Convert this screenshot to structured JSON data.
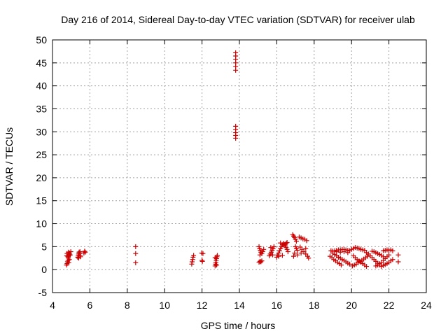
{
  "chart_data": {
    "type": "scatter",
    "title": "Day 216 of 2014, Sidereal Day-to-day VTEC variation (SDTVAR) for receiver ulab",
    "xlabel": "GPS time / hours",
    "ylabel": "SDTVAR / TECUs",
    "xlim": [
      4,
      24
    ],
    "ylim": [
      -5,
      50
    ],
    "xticks": [
      4,
      6,
      8,
      10,
      12,
      14,
      16,
      18,
      20,
      22,
      24
    ],
    "yticks": [
      -5,
      0,
      5,
      10,
      15,
      20,
      25,
      30,
      35,
      40,
      45,
      50
    ],
    "xtick_labels": [
      "4",
      "6",
      "8",
      "10",
      "12",
      "14",
      "16",
      "18",
      "20",
      "22",
      "24"
    ],
    "ytick_labels": [
      "-5",
      "0",
      "5",
      "10",
      "15",
      "20",
      "25",
      "30",
      "35",
      "40",
      "45",
      "50"
    ],
    "grid": true,
    "marker": "plus",
    "color": "#cc0000",
    "series": [
      {
        "name": "SDTVAR",
        "points": [
          [
            4.75,
            1.0
          ],
          [
            4.78,
            1.3
          ],
          [
            4.8,
            1.7
          ],
          [
            4.83,
            2.0
          ],
          [
            4.85,
            2.5
          ],
          [
            4.88,
            3.0
          ],
          [
            4.9,
            3.3
          ],
          [
            4.78,
            3.5
          ],
          [
            4.85,
            3.8
          ],
          [
            4.92,
            3.6
          ],
          [
            4.95,
            3.2
          ],
          [
            4.82,
            2.8
          ],
          [
            4.9,
            2.2
          ],
          [
            4.98,
            3.9
          ],
          [
            4.76,
            3.0
          ],
          [
            4.87,
            1.5
          ],
          [
            5.35,
            2.7
          ],
          [
            5.38,
            3.0
          ],
          [
            5.4,
            3.4
          ],
          [
            5.42,
            3.8
          ],
          [
            5.45,
            3.5
          ],
          [
            5.48,
            3.1
          ],
          [
            5.5,
            2.8
          ],
          [
            5.4,
            2.5
          ],
          [
            5.47,
            3.9
          ],
          [
            5.68,
            3.6
          ],
          [
            5.72,
            4.0
          ],
          [
            5.75,
            3.8
          ],
          [
            8.45,
            5.0
          ],
          [
            8.45,
            3.5
          ],
          [
            8.45,
            1.5
          ],
          [
            11.45,
            1.2
          ],
          [
            11.47,
            1.7
          ],
          [
            11.5,
            2.2
          ],
          [
            11.52,
            2.7
          ],
          [
            11.55,
            3.1
          ],
          [
            11.98,
            3.6
          ],
          [
            12.0,
            2.0
          ],
          [
            12.02,
            1.8
          ],
          [
            12.05,
            3.5
          ],
          [
            12.7,
            0.8
          ],
          [
            12.72,
            1.2
          ],
          [
            12.74,
            1.6
          ],
          [
            12.76,
            2.0
          ],
          [
            12.78,
            2.4
          ],
          [
            12.8,
            2.8
          ],
          [
            12.82,
            3.1
          ],
          [
            12.7,
            2.6
          ],
          [
            12.78,
            1.0
          ],
          [
            13.8,
            47.2
          ],
          [
            13.8,
            46.5
          ],
          [
            13.8,
            45.8
          ],
          [
            13.8,
            45.0
          ],
          [
            13.8,
            44.2
          ],
          [
            13.8,
            43.4
          ],
          [
            13.8,
            31.2
          ],
          [
            13.8,
            30.5
          ],
          [
            13.8,
            29.8
          ],
          [
            13.8,
            29.2
          ],
          [
            13.8,
            28.6
          ],
          [
            15.05,
            1.6
          ],
          [
            15.1,
            1.8
          ],
          [
            15.15,
            1.7
          ],
          [
            15.2,
            1.9
          ],
          [
            15.05,
            5.0
          ],
          [
            15.08,
            4.6
          ],
          [
            15.12,
            4.2
          ],
          [
            15.15,
            3.8
          ],
          [
            15.2,
            3.5
          ],
          [
            15.25,
            3.9
          ],
          [
            15.3,
            4.4
          ],
          [
            15.1,
            3.2
          ],
          [
            15.6,
            3.0
          ],
          [
            15.65,
            3.4
          ],
          [
            15.7,
            3.8
          ],
          [
            15.75,
            4.2
          ],
          [
            15.8,
            4.6
          ],
          [
            15.85,
            5.0
          ],
          [
            15.68,
            4.8
          ],
          [
            15.78,
            3.2
          ],
          [
            16.0,
            2.7
          ],
          [
            16.05,
            3.2
          ],
          [
            16.1,
            3.6
          ],
          [
            16.15,
            4.1
          ],
          [
            16.2,
            4.6
          ],
          [
            16.25,
            5.0
          ],
          [
            16.3,
            5.4
          ],
          [
            16.35,
            5.7
          ],
          [
            16.4,
            5.5
          ],
          [
            16.45,
            5.2
          ],
          [
            16.5,
            4.8
          ],
          [
            16.55,
            4.4
          ],
          [
            16.6,
            3.9
          ],
          [
            16.5,
            5.7
          ],
          [
            16.1,
            2.9
          ],
          [
            16.3,
            3.1
          ],
          [
            16.55,
            5.9
          ],
          [
            16.2,
            5.8
          ],
          [
            16.85,
            7.6
          ],
          [
            16.9,
            7.3
          ],
          [
            16.95,
            7.0
          ],
          [
            17.0,
            6.6
          ],
          [
            17.05,
            6.2
          ],
          [
            17.0,
            5.0
          ],
          [
            17.05,
            4.6
          ],
          [
            17.1,
            4.2
          ],
          [
            16.95,
            3.6
          ],
          [
            17.1,
            3.2
          ],
          [
            16.9,
            2.9
          ],
          [
            17.2,
            7.1
          ],
          [
            17.3,
            6.9
          ],
          [
            17.4,
            6.7
          ],
          [
            17.5,
            6.6
          ],
          [
            17.6,
            6.3
          ],
          [
            17.25,
            4.9
          ],
          [
            17.35,
            4.4
          ],
          [
            17.45,
            3.9
          ],
          [
            17.55,
            3.4
          ],
          [
            17.65,
            2.9
          ],
          [
            17.7,
            2.5
          ],
          [
            17.3,
            3.6
          ],
          [
            17.55,
            4.6
          ],
          [
            18.85,
            2.9
          ],
          [
            18.95,
            2.6
          ],
          [
            19.05,
            2.2
          ],
          [
            19.15,
            1.9
          ],
          [
            19.25,
            1.6
          ],
          [
            19.35,
            1.3
          ],
          [
            19.45,
            1.0
          ],
          [
            18.9,
            4.1
          ],
          [
            19.0,
            4.0
          ],
          [
            19.1,
            4.1
          ],
          [
            19.2,
            4.2
          ],
          [
            19.3,
            4.3
          ],
          [
            19.4,
            4.3
          ],
          [
            19.5,
            4.4
          ],
          [
            19.6,
            4.4
          ],
          [
            19.7,
            4.3
          ],
          [
            19.8,
            4.2
          ],
          [
            19.9,
            4.1
          ],
          [
            19.0,
            3.6
          ],
          [
            19.1,
            3.3
          ],
          [
            19.2,
            3.0
          ],
          [
            19.3,
            2.7
          ],
          [
            19.4,
            2.5
          ],
          [
            19.5,
            2.2
          ],
          [
            19.6,
            2.0
          ],
          [
            19.7,
            1.7
          ],
          [
            19.8,
            1.4
          ],
          [
            19.9,
            1.2
          ],
          [
            19.2,
            3.9
          ],
          [
            19.4,
            3.8
          ],
          [
            19.6,
            3.9
          ],
          [
            19.8,
            3.7
          ],
          [
            20.0,
            4.4
          ],
          [
            20.1,
            4.6
          ],
          [
            20.2,
            4.8
          ],
          [
            20.3,
            4.7
          ],
          [
            20.4,
            4.6
          ],
          [
            20.5,
            4.4
          ],
          [
            20.6,
            4.3
          ],
          [
            20.7,
            4.2
          ],
          [
            20.05,
            0.8
          ],
          [
            20.15,
            1.0
          ],
          [
            20.25,
            1.2
          ],
          [
            20.35,
            1.5
          ],
          [
            20.45,
            1.8
          ],
          [
            20.55,
            2.0
          ],
          [
            20.65,
            2.3
          ],
          [
            20.75,
            2.6
          ],
          [
            20.85,
            2.9
          ],
          [
            20.1,
            3.0
          ],
          [
            20.2,
            2.6
          ],
          [
            20.3,
            2.2
          ],
          [
            20.4,
            1.9
          ],
          [
            20.5,
            1.6
          ],
          [
            20.6,
            1.3
          ],
          [
            20.7,
            1.0
          ],
          [
            20.8,
            0.7
          ],
          [
            20.8,
            3.7
          ],
          [
            20.9,
            3.4
          ],
          [
            21.0,
            3.0
          ],
          [
            21.1,
            2.6
          ],
          [
            21.2,
            2.2
          ],
          [
            21.3,
            1.8
          ],
          [
            21.4,
            1.4
          ],
          [
            21.5,
            1.0
          ],
          [
            21.1,
            4.0
          ],
          [
            21.2,
            3.9
          ],
          [
            21.3,
            3.7
          ],
          [
            21.4,
            3.5
          ],
          [
            21.5,
            3.3
          ],
          [
            21.6,
            3.1
          ],
          [
            21.7,
            2.8
          ],
          [
            21.3,
            0.8
          ],
          [
            21.4,
            1.0
          ],
          [
            21.5,
            1.3
          ],
          [
            21.6,
            1.6
          ],
          [
            21.7,
            2.0
          ],
          [
            21.8,
            2.4
          ],
          [
            21.9,
            2.8
          ],
          [
            22.0,
            3.2
          ],
          [
            21.7,
            4.1
          ],
          [
            21.8,
            4.2
          ],
          [
            21.9,
            4.3
          ],
          [
            22.0,
            4.2
          ],
          [
            22.1,
            4.3
          ],
          [
            22.2,
            4.1
          ],
          [
            21.6,
            0.7
          ],
          [
            21.7,
            0.9
          ],
          [
            21.8,
            1.1
          ],
          [
            21.9,
            1.3
          ],
          [
            22.0,
            1.6
          ],
          [
            22.1,
            1.9
          ],
          [
            22.2,
            2.2
          ],
          [
            22.5,
            3.2
          ],
          [
            22.5,
            1.7
          ]
        ]
      }
    ]
  }
}
